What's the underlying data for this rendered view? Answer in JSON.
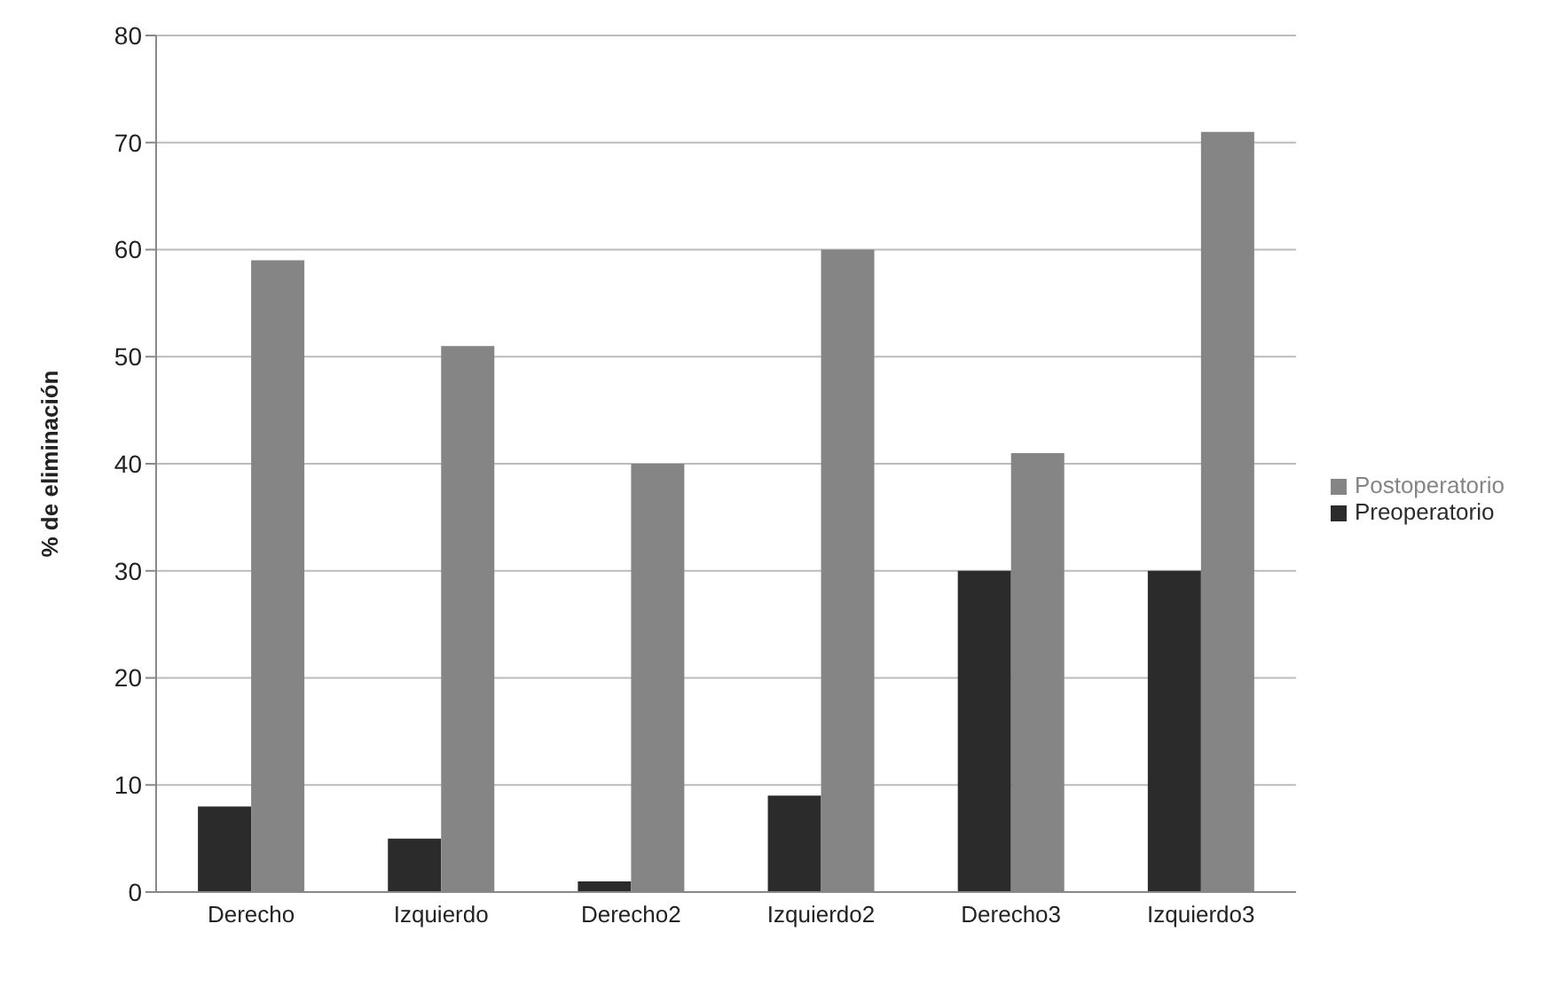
{
  "chart_data": {
    "type": "bar",
    "ylabel": "% de eliminación",
    "categories": [
      "Derecho",
      "Izquierdo",
      "Derecho2",
      "Izquierdo2",
      "Derecho3",
      "Izquierdo3"
    ],
    "series": [
      {
        "name": "Preoperatorio",
        "color": "#2b2b2b",
        "values": [
          8,
          5,
          1,
          9,
          30,
          30
        ]
      },
      {
        "name": "Postoperatorio",
        "color": "#858585",
        "values": [
          59,
          51,
          40,
          60,
          41,
          71
        ]
      }
    ],
    "ylim": [
      0,
      80
    ],
    "yticks": [
      0,
      10,
      20,
      30,
      40,
      50,
      60,
      70,
      80
    ],
    "grid": "y",
    "legend": "right"
  }
}
